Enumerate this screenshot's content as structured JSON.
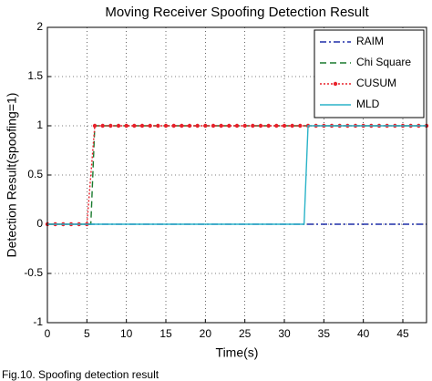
{
  "chart_data": {
    "type": "line",
    "title": "Moving Receiver Spoofing Detection Result",
    "x_label": "Time(s)",
    "y_label": "Detection Result(spoofing=1)",
    "caption": "Fig.10. Spoofing detection result",
    "xlim": [
      0,
      48
    ],
    "xticks": [
      0,
      5,
      10,
      15,
      20,
      25,
      30,
      35,
      40,
      45
    ],
    "ylim": [
      -1,
      2
    ],
    "yticks": [
      -1,
      -0.5,
      0,
      0.5,
      1,
      1.5,
      2
    ],
    "grid": true,
    "legend": "upper right",
    "series": [
      {
        "name": "RAIM",
        "color": "#1f2fa8",
        "style": "dashdot",
        "x": [
          0,
          48
        ],
        "values": [
          0,
          0
        ]
      },
      {
        "name": "Chi Square",
        "color": "#1a7a2e",
        "style": "dashed",
        "x": [
          0,
          5.5,
          6,
          48
        ],
        "values": [
          0,
          0,
          1,
          1
        ]
      },
      {
        "name": "CUSUM",
        "color": "#e8202a",
        "style": "dotted",
        "marker": "dot",
        "x": [
          0,
          1,
          2,
          3,
          4,
          5,
          6,
          7,
          8,
          9,
          10,
          11,
          12,
          13,
          14,
          15,
          16,
          17,
          18,
          19,
          20,
          21,
          22,
          23,
          24,
          25,
          26,
          27,
          28,
          29,
          30,
          31,
          32,
          33,
          34,
          35,
          36,
          37,
          38,
          39,
          40,
          41,
          42,
          43,
          44,
          45,
          46,
          47,
          48
        ],
        "values": [
          0,
          0,
          0,
          0,
          0,
          0,
          1,
          1,
          1,
          1,
          1,
          1,
          1,
          1,
          1,
          1,
          1,
          1,
          1,
          1,
          1,
          1,
          1,
          1,
          1,
          1,
          1,
          1,
          1,
          1,
          1,
          1,
          1,
          1,
          1,
          1,
          1,
          1,
          1,
          1,
          1,
          1,
          1,
          1,
          1,
          1,
          1,
          1,
          1
        ]
      },
      {
        "name": "MLD",
        "color": "#2ab3c8",
        "style": "solid",
        "x": [
          0,
          32.5,
          33,
          48
        ],
        "values": [
          0,
          0,
          1,
          1
        ]
      }
    ]
  }
}
